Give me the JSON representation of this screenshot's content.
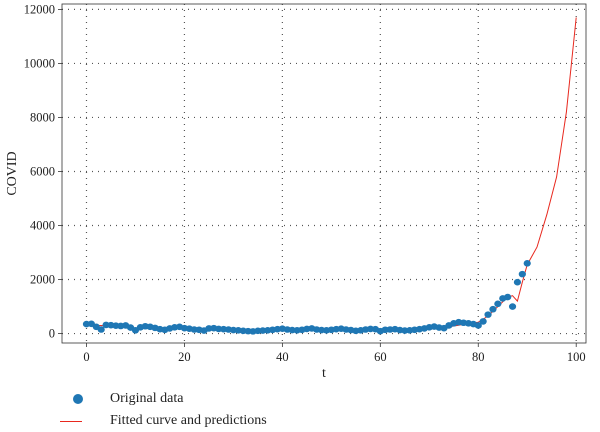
{
  "chart_data": {
    "type": "scatter",
    "xlabel": "t",
    "ylabel": "COVID",
    "xlim": [
      -5,
      102
    ],
    "ylim": [
      -350,
      12200
    ],
    "xticks": [
      0,
      20,
      40,
      60,
      80,
      100
    ],
    "yticks": [
      0,
      2000,
      4000,
      6000,
      8000,
      10000,
      12000
    ],
    "grid": true,
    "legend_position": "bottom-left",
    "series": [
      {
        "name": "Original data",
        "kind": "scatter",
        "color": "#1f77b4",
        "x": [
          0,
          1,
          2,
          3,
          4,
          5,
          6,
          7,
          8,
          9,
          10,
          11,
          12,
          13,
          14,
          15,
          16,
          17,
          18,
          19,
          20,
          21,
          22,
          23,
          24,
          25,
          26,
          27,
          28,
          29,
          30,
          31,
          32,
          33,
          34,
          35,
          36,
          37,
          38,
          39,
          40,
          41,
          42,
          43,
          44,
          45,
          46,
          47,
          48,
          49,
          50,
          51,
          52,
          53,
          54,
          55,
          56,
          57,
          58,
          59,
          60,
          61,
          62,
          63,
          64,
          65,
          66,
          67,
          68,
          69,
          70,
          71,
          72,
          73,
          74,
          75,
          76,
          77,
          78,
          79,
          80,
          81,
          82,
          83,
          84,
          85,
          86,
          87,
          88,
          89,
          90
        ],
        "y": [
          350,
          360,
          250,
          150,
          320,
          310,
          290,
          280,
          300,
          220,
          120,
          230,
          270,
          250,
          210,
          160,
          140,
          190,
          230,
          250,
          200,
          180,
          150,
          140,
          110,
          190,
          200,
          170,
          160,
          150,
          130,
          120,
          100,
          90,
          80,
          100,
          110,
          120,
          140,
          160,
          180,
          150,
          130,
          120,
          140,
          170,
          190,
          150,
          130,
          120,
          140,
          160,
          180,
          150,
          130,
          100,
          120,
          150,
          170,
          160,
          90,
          140,
          150,
          160,
          130,
          110,
          120,
          140,
          160,
          190,
          230,
          260,
          220,
          200,
          300,
          380,
          420,
          400,
          380,
          350,
          300,
          450,
          700,
          900,
          1100,
          1300,
          1350,
          1000,
          1900,
          2200,
          2600
        ]
      },
      {
        "name": "Fitted curve and predictions",
        "kind": "line",
        "color": "#e8281e",
        "x": [
          0,
          2,
          4,
          6,
          8,
          10,
          12,
          14,
          16,
          18,
          20,
          22,
          24,
          26,
          28,
          30,
          32,
          34,
          36,
          38,
          40,
          42,
          44,
          46,
          48,
          50,
          52,
          54,
          56,
          58,
          60,
          62,
          64,
          66,
          68,
          70,
          72,
          74,
          76,
          78,
          80,
          82,
          84,
          86,
          87,
          88,
          89,
          90,
          92,
          94,
          96,
          98,
          100
        ],
        "y": [
          360,
          300,
          290,
          280,
          250,
          200,
          230,
          210,
          160,
          200,
          220,
          180,
          130,
          190,
          170,
          150,
          120,
          90,
          90,
          120,
          160,
          140,
          130,
          150,
          140,
          130,
          140,
          150,
          140,
          120,
          110,
          130,
          130,
          120,
          130,
          170,
          210,
          250,
          310,
          380,
          420,
          650,
          1000,
          1350,
          1400,
          1200,
          1900,
          2550,
          3200,
          4400,
          5800,
          8200,
          11700
        ]
      }
    ]
  }
}
